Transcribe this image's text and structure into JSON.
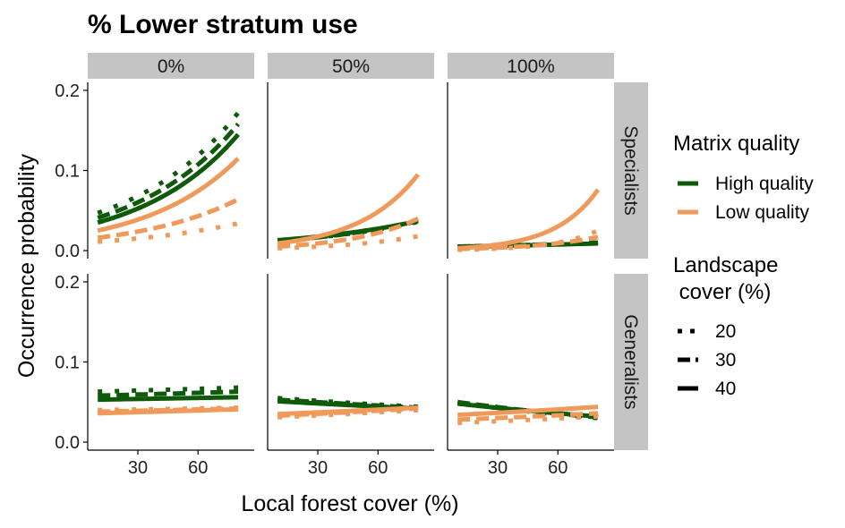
{
  "chart_data": {
    "type": "line",
    "title": "% Lower stratum use",
    "xlabel": "Local forest cover (%)",
    "ylabel": "Occurrence probability",
    "xlim": [
      5,
      88
    ],
    "ylim": [
      -0.01,
      0.21
    ],
    "x_ticks": [
      30,
      60
    ],
    "x_tick_labels": [
      "30",
      "60"
    ],
    "y_ticks": [
      0.0,
      0.1,
      0.2
    ],
    "y_tick_labels": [
      "0.0",
      "0.1",
      "0.2"
    ],
    "columns": [
      "0%",
      "50%",
      "100%"
    ],
    "rows": [
      "Specialists",
      "Generalists"
    ],
    "colors": {
      "High quality": "#0f5a0a",
      "Low quality": "#ef9a5a"
    },
    "legend": {
      "placement": "right",
      "color_title": "Matrix quality",
      "color_items": [
        "High quality",
        "Low quality"
      ],
      "linetype_title_line1": "Landscape",
      "linetype_title_line2": " cover (%)",
      "linetype_items": [
        "20",
        "30",
        "40"
      ]
    },
    "x": [
      10,
      80
    ],
    "panels": [
      {
        "row": "Specialists",
        "col": "0%",
        "series": [
          {
            "matrix": "High quality",
            "cover": "20",
            "y_start": 0.047,
            "y_end": 0.172
          },
          {
            "matrix": "High quality",
            "cover": "30",
            "y_start": 0.041,
            "y_end": 0.158
          },
          {
            "matrix": "High quality",
            "cover": "40",
            "y_start": 0.035,
            "y_end": 0.145
          },
          {
            "matrix": "Low quality",
            "cover": "20",
            "y_start": 0.011,
            "y_end": 0.034
          },
          {
            "matrix": "Low quality",
            "cover": "30",
            "y_start": 0.016,
            "y_end": 0.064
          },
          {
            "matrix": "Low quality",
            "cover": "40",
            "y_start": 0.025,
            "y_end": 0.115
          }
        ]
      },
      {
        "row": "Specialists",
        "col": "50%",
        "series": [
          {
            "matrix": "High quality",
            "cover": "20",
            "y_start": 0.012,
            "y_end": 0.036
          },
          {
            "matrix": "High quality",
            "cover": "30",
            "y_start": 0.012,
            "y_end": 0.037
          },
          {
            "matrix": "High quality",
            "cover": "40",
            "y_start": 0.013,
            "y_end": 0.037
          },
          {
            "matrix": "Low quality",
            "cover": "20",
            "y_start": 0.003,
            "y_end": 0.018
          },
          {
            "matrix": "Low quality",
            "cover": "30",
            "y_start": 0.005,
            "y_end": 0.04
          },
          {
            "matrix": "Low quality",
            "cover": "40",
            "y_start": 0.009,
            "y_end": 0.095
          }
        ]
      },
      {
        "row": "Specialists",
        "col": "100%",
        "series": [
          {
            "matrix": "High quality",
            "cover": "20",
            "y_start": 0.005,
            "y_end": 0.01
          },
          {
            "matrix": "High quality",
            "cover": "30",
            "y_start": 0.005,
            "y_end": 0.01
          },
          {
            "matrix": "High quality",
            "cover": "40",
            "y_start": 0.005,
            "y_end": 0.009
          },
          {
            "matrix": "Low quality",
            "cover": "20",
            "y_start": 0.001,
            "y_end": 0.025
          },
          {
            "matrix": "Low quality",
            "cover": "30",
            "y_start": 0.002,
            "y_end": 0.017
          },
          {
            "matrix": "Low quality",
            "cover": "40",
            "y_start": 0.003,
            "y_end": 0.076
          }
        ]
      },
      {
        "row": "Generalists",
        "col": "0%",
        "series": [
          {
            "matrix": "High quality",
            "cover": "20",
            "y_start": 0.063,
            "y_end": 0.068
          },
          {
            "matrix": "High quality",
            "cover": "30",
            "y_start": 0.058,
            "y_end": 0.063
          },
          {
            "matrix": "High quality",
            "cover": "40",
            "y_start": 0.053,
            "y_end": 0.056
          },
          {
            "matrix": "Low quality",
            "cover": "20",
            "y_start": 0.04,
            "y_end": 0.043
          },
          {
            "matrix": "Low quality",
            "cover": "30",
            "y_start": 0.038,
            "y_end": 0.042
          },
          {
            "matrix": "Low quality",
            "cover": "40",
            "y_start": 0.036,
            "y_end": 0.041
          }
        ]
      },
      {
        "row": "Generalists",
        "col": "50%",
        "series": [
          {
            "matrix": "High quality",
            "cover": "20",
            "y_start": 0.055,
            "y_end": 0.044
          },
          {
            "matrix": "High quality",
            "cover": "30",
            "y_start": 0.053,
            "y_end": 0.043
          },
          {
            "matrix": "High quality",
            "cover": "40",
            "y_start": 0.051,
            "y_end": 0.042
          },
          {
            "matrix": "Low quality",
            "cover": "20",
            "y_start": 0.031,
            "y_end": 0.04
          },
          {
            "matrix": "Low quality",
            "cover": "30",
            "y_start": 0.033,
            "y_end": 0.042
          },
          {
            "matrix": "Low quality",
            "cover": "40",
            "y_start": 0.035,
            "y_end": 0.043
          }
        ]
      },
      {
        "row": "Generalists",
        "col": "100%",
        "series": [
          {
            "matrix": "High quality",
            "cover": "20",
            "y_start": 0.049,
            "y_end": 0.03
          },
          {
            "matrix": "High quality",
            "cover": "30",
            "y_start": 0.05,
            "y_end": 0.031
          },
          {
            "matrix": "High quality",
            "cover": "40",
            "y_start": 0.048,
            "y_end": 0.032
          },
          {
            "matrix": "Low quality",
            "cover": "20",
            "y_start": 0.024,
            "y_end": 0.032
          },
          {
            "matrix": "Low quality",
            "cover": "30",
            "y_start": 0.028,
            "y_end": 0.036
          },
          {
            "matrix": "Low quality",
            "cover": "40",
            "y_start": 0.034,
            "y_end": 0.044
          }
        ]
      }
    ]
  }
}
